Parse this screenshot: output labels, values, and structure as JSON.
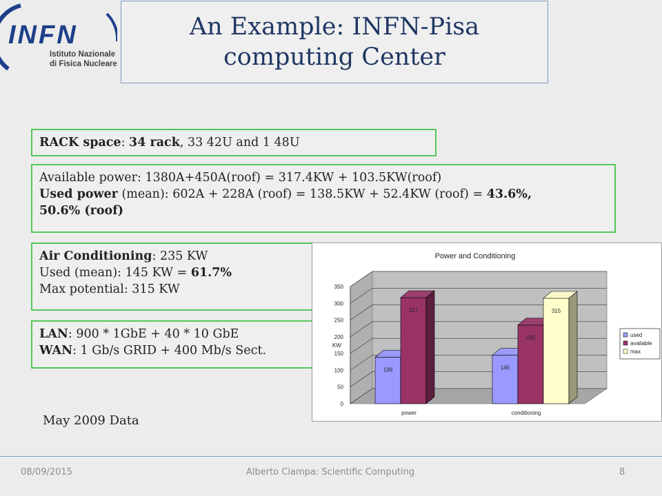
{
  "header": {
    "title_line1": "An Example: INFN-Pisa",
    "title_line2": "computing Center"
  },
  "logo": {
    "mark": "INFN",
    "line1": "Istituto Nazionale",
    "line2": "di Fisica Nucleare"
  },
  "rack": {
    "label": "RACK space",
    "sep": ": ",
    "bold_value": "34 rack",
    "rest": ", 33 42U and 1 48U"
  },
  "power": {
    "available": "Available power: 1380A+450A(roof) = 317.4KW + 103.5KW(roof)",
    "used_label": "Used power",
    "used_text": " (mean): 602A + 228A (roof) = 138.5KW + 52.4KW (roof) = ",
    "used_pct": "43.6%,",
    "used_pct2": "50.6% (roof)"
  },
  "air": {
    "label": "Air Conditioning",
    "value": ": 235 KW",
    "used_text": "Used (mean): 145 KW = ",
    "used_pct": "61.7%",
    "max": "Max potential: 315 KW"
  },
  "network": {
    "lan_label": "LAN",
    "lan_value": ": 900 * 1GbE + 40 * 10 GbE",
    "wan_label": "WAN",
    "wan_value": ": 1 Gb/s GRID + 400 Mb/s Sect."
  },
  "note": "May 2009  Data",
  "footer": {
    "date": "08/09/2015",
    "author": "Alberto Ciampa: Scientific Computing",
    "page": "8"
  },
  "colors": {
    "used": "#9999ff",
    "available": "#993366",
    "max": "#ffffcc"
  },
  "chart_data": {
    "type": "bar",
    "title": "Power and Conditioning",
    "ylabel": "KW",
    "xlabel": "",
    "ylim": [
      0,
      350
    ],
    "yticks": [
      0,
      50,
      100,
      150,
      200,
      250,
      300,
      350
    ],
    "categories": [
      "power",
      "conditioning"
    ],
    "series": [
      {
        "name": "used",
        "values": [
          139,
          145
        ]
      },
      {
        "name": "available",
        "values": [
          317,
          235
        ]
      },
      {
        "name": "max",
        "values": [
          null,
          315
        ]
      }
    ],
    "legend": "right",
    "grid": true,
    "style": "3d"
  }
}
